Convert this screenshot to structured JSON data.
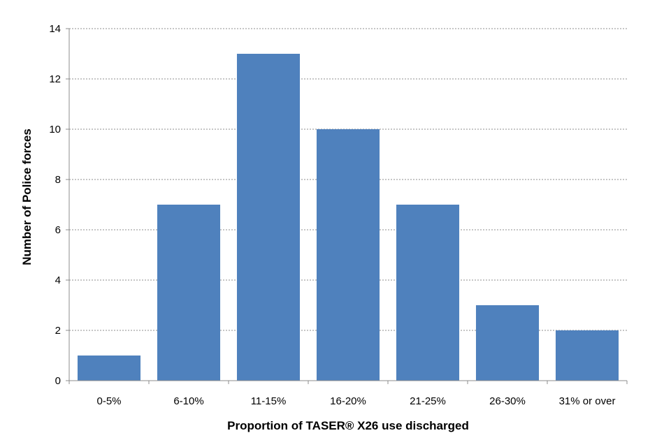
{
  "chart_data": {
    "type": "bar",
    "title": "",
    "xlabel": "Proportion of TASER® X26 use discharged",
    "ylabel": "Number of Police forces",
    "categories": [
      "0-5%",
      "6-10%",
      "11-15%",
      "16-20%",
      "21-25%",
      "26-30%",
      "31% or over"
    ],
    "values": [
      1,
      7,
      13,
      10,
      7,
      3,
      2
    ],
    "ylim": [
      0,
      14
    ],
    "yticks": [
      0,
      2,
      4,
      6,
      8,
      10,
      12,
      14
    ],
    "grid": "horizontal-dashed",
    "legend": "none",
    "colors": {
      "bar": "#4f81bd",
      "grid": "#8c8c8c",
      "axis": "#8c8c8c"
    }
  }
}
